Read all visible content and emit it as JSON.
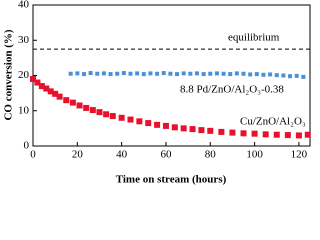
{
  "chart_data": {
    "type": "scatter",
    "xlabel": "Time on stream (hours)",
    "ylabel": "CO conversion (%)",
    "xlim": [
      0,
      125
    ],
    "ylim": [
      0,
      40
    ],
    "xticks": [
      0,
      20,
      40,
      60,
      80,
      100,
      120
    ],
    "yticks": [
      0,
      10,
      20,
      30,
      40
    ],
    "reference_line": {
      "label": "equilibrium",
      "value": 27.5,
      "color": "#000000"
    },
    "series": [
      {
        "name": "8.8 Pd/ZnO/Al₂O₃-0.38",
        "color": "#4a90d9",
        "x": [
          17,
          20,
          23,
          26,
          29,
          32,
          35,
          38,
          41,
          44,
          47,
          50,
          53,
          56,
          59,
          62,
          65,
          68,
          71,
          74,
          77,
          80,
          83,
          86,
          89,
          92,
          95,
          98,
          101,
          104,
          107,
          110,
          113,
          116,
          119,
          122
        ],
        "values": [
          20.5,
          20.6,
          20.4,
          20.7,
          20.5,
          20.6,
          20.4,
          20.5,
          20.7,
          20.5,
          20.6,
          20.4,
          20.6,
          20.5,
          20.7,
          20.5,
          20.4,
          20.6,
          20.5,
          20.6,
          20.4,
          20.5,
          20.6,
          20.5,
          20.4,
          20.6,
          20.5,
          20.3,
          20.4,
          20.2,
          20.3,
          20.1,
          20.0,
          19.8,
          19.9,
          19.6
        ]
      },
      {
        "name": "Cu/ZnO/Al₂O₃",
        "color": "#e8112d",
        "x": [
          0,
          2,
          4,
          6,
          8,
          10,
          12,
          15,
          18,
          21,
          24,
          27,
          30,
          33,
          36,
          40,
          44,
          48,
          52,
          56,
          60,
          64,
          68,
          72,
          76,
          80,
          85,
          90,
          95,
          100,
          105,
          110,
          115,
          120,
          124
        ],
        "values": [
          19,
          18,
          17,
          16.3,
          15.5,
          14.8,
          14,
          13,
          12.3,
          11.5,
          10.8,
          10.2,
          9.6,
          9,
          8.5,
          8,
          7.5,
          7,
          6.5,
          6,
          5.7,
          5.3,
          5,
          4.8,
          4.5,
          4.3,
          4,
          3.8,
          3.6,
          3.5,
          3.3,
          3.2,
          3.1,
          3,
          3.2
        ]
      }
    ]
  }
}
